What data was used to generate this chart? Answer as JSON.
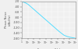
{
  "title": "",
  "xlabel": "Frequency (Hz)",
  "ylabel": "Phase Noise\n(dBc/Hz)",
  "xlim_log": [
    0,
    9
  ],
  "ylim": [
    -160,
    -20
  ],
  "yticks": [
    -160,
    -140,
    -120,
    -100,
    -80,
    -60,
    -40,
    -20
  ],
  "line_color": "#55ddff",
  "bg_color": "#f0f0f0",
  "axes_bg": "#f0f0f0",
  "grid_color": "#ffffff",
  "line_x_log": [
    0,
    0.5,
    1,
    2,
    3,
    4,
    5,
    6,
    7,
    7.5,
    8,
    8.5,
    9
  ],
  "line_y": [
    -20,
    -24,
    -30,
    -50,
    -70,
    -90,
    -110,
    -130,
    -148,
    -153,
    -156,
    -158,
    -160
  ]
}
